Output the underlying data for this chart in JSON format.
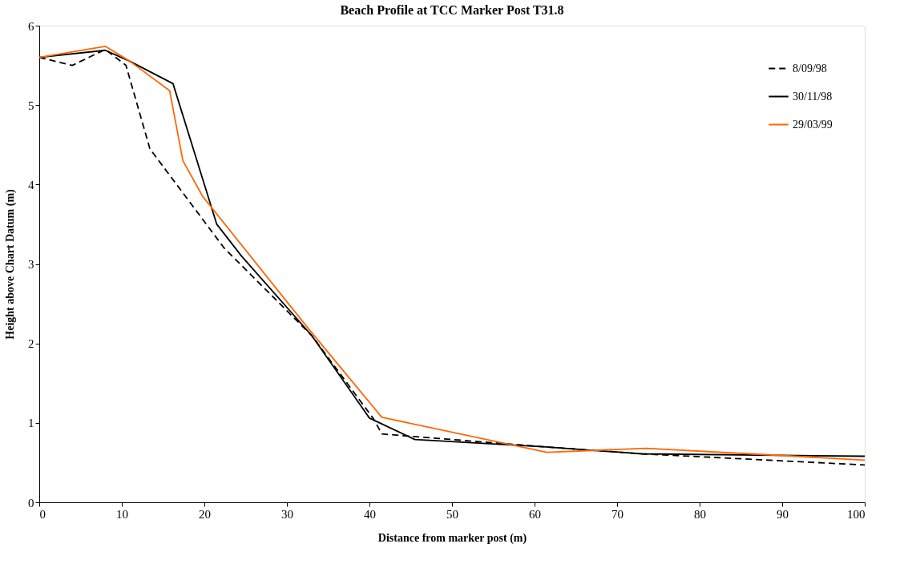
{
  "chart_data": {
    "type": "line",
    "title": "Beach Profile at TCC Marker Post T31.8",
    "xlabel": "Distance from marker post (m)",
    "ylabel": "Height above Chart Datum (m)",
    "xlim": [
      0,
      100
    ],
    "xticks": [
      0,
      10,
      20,
      30,
      40,
      50,
      60,
      70,
      80,
      90,
      100
    ],
    "ylim": [
      0,
      6
    ],
    "yticks": [
      0,
      1,
      2,
      3,
      4,
      5,
      6
    ],
    "grid": false,
    "legend": "top right",
    "marker": "none",
    "series": [
      {
        "name": "8/09/98",
        "color": "#000000",
        "line_style": "dashed",
        "x": [
          0,
          4,
          8,
          10.5,
          13.4,
          22.4,
          33,
          40.5,
          41.5,
          61,
          73,
          100
        ],
        "values": [
          5.6,
          5.5,
          5.7,
          5.5,
          4.45,
          3.2,
          2.1,
          1.05,
          0.86,
          0.7,
          0.61,
          0.47
        ]
      },
      {
        "name": "30/11/98",
        "color": "#000000",
        "line_style": "solid",
        "x": [
          0,
          8,
          11,
          16.2,
          21.5,
          24.5,
          33,
          40,
          45.5,
          61,
          73,
          100
        ],
        "values": [
          5.6,
          5.69,
          5.55,
          5.27,
          3.5,
          3.1,
          2.1,
          1.06,
          0.79,
          0.7,
          0.61,
          0.58
        ]
      },
      {
        "name": "29/03/99",
        "color": "#ff6600",
        "line_style": "solid",
        "x": [
          0,
          8,
          11,
          15.8,
          17.4,
          19.8,
          32.5,
          41.5,
          61.5,
          73.5,
          88,
          100
        ],
        "values": [
          5.6,
          5.74,
          5.55,
          5.18,
          4.3,
          3.85,
          2.2,
          1.07,
          0.63,
          0.68,
          0.6,
          0.53
        ]
      }
    ]
  }
}
